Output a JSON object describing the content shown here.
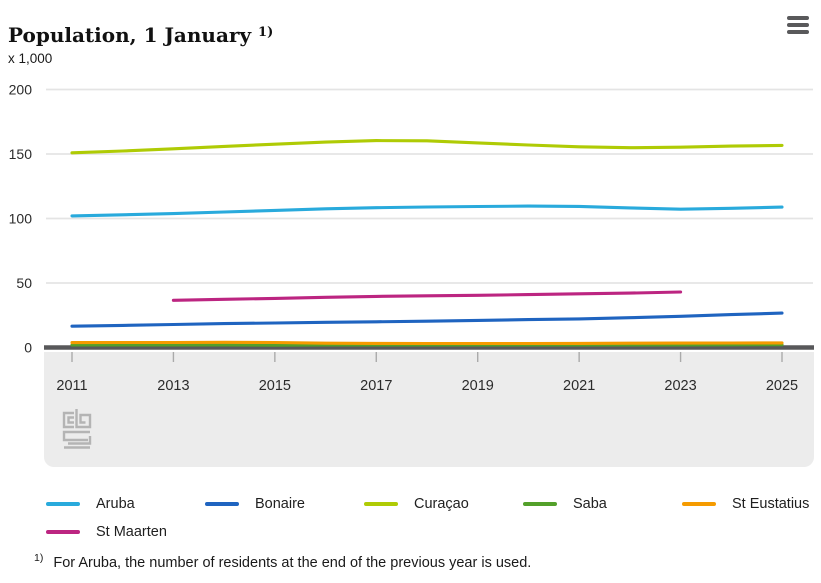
{
  "header": {
    "title": "Population, 1 January",
    "title_superscript": "1)",
    "menu_icon": "hamburger-menu-icon"
  },
  "chart_data": {
    "type": "line",
    "title": "Population, 1 January",
    "unit_label": "x 1,000",
    "x": [
      2011,
      2012,
      2013,
      2014,
      2015,
      2016,
      2017,
      2018,
      2019,
      2020,
      2021,
      2022,
      2023,
      2024,
      2025
    ],
    "x_tick_labels": [
      "2011",
      "2013",
      "2015",
      "2017",
      "2019",
      "2021",
      "2023",
      "2025"
    ],
    "y_ticks": [
      0,
      50,
      100,
      150,
      200
    ],
    "ylim": [
      0,
      200
    ],
    "grid": true,
    "legend_position": "bottom",
    "series": [
      {
        "name": "Aruba",
        "color": "#29aadc",
        "values": [
          102.0,
          102.9,
          103.8,
          105.0,
          106.3,
          107.5,
          108.4,
          108.9,
          109.3,
          109.6,
          109.4,
          108.2,
          107.2,
          107.9,
          108.8
        ]
      },
      {
        "name": "Bonaire",
        "color": "#1f64c0",
        "values": [
          16.5,
          17.1,
          17.8,
          18.5,
          19.0,
          19.5,
          19.9,
          20.4,
          21.0,
          21.6,
          22.2,
          23.1,
          24.2,
          25.5,
          26.7
        ]
      },
      {
        "name": "Curaçao",
        "color": "#afcb05",
        "values": [
          150.9,
          152.3,
          154.0,
          155.9,
          157.6,
          159.2,
          160.4,
          160.2,
          158.6,
          157.0,
          155.6,
          154.9,
          155.3,
          156.1,
          156.7
        ]
      },
      {
        "name": "Saba",
        "color": "#53a02a",
        "values": [
          1.9,
          1.9,
          2.0,
          1.9,
          1.8,
          1.9,
          2.0,
          1.9,
          1.9,
          1.9,
          1.9,
          1.9,
          2.0,
          2.1,
          2.2
        ]
      },
      {
        "name": "St Eustatius",
        "color": "#f59b00",
        "values": [
          3.8,
          3.9,
          3.9,
          4.0,
          3.9,
          3.3,
          3.2,
          3.1,
          3.1,
          3.1,
          3.2,
          3.3,
          3.4,
          3.5,
          3.6
        ]
      },
      {
        "name": "St Maarten",
        "color": "#bc2581",
        "values": [
          null,
          null,
          36.6,
          37.4,
          38.1,
          38.9,
          39.6,
          40.1,
          40.5,
          41.0,
          41.6,
          42.2,
          43.0,
          null,
          null
        ]
      }
    ]
  },
  "footnote": {
    "marker": "1)",
    "text": "For Aruba, the number of residents at the end of the previous year is used."
  }
}
